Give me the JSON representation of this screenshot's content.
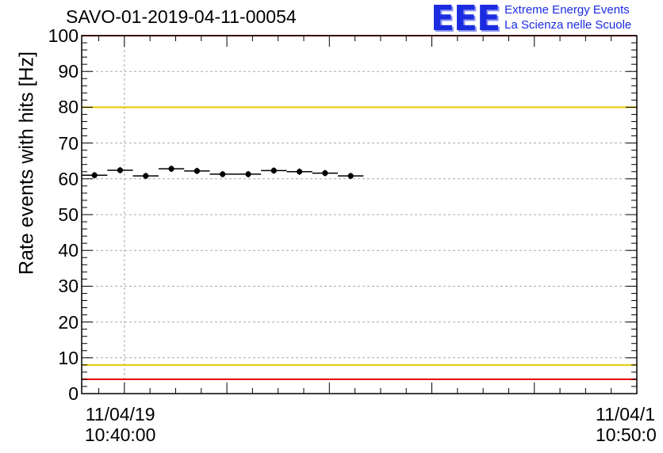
{
  "chart_data": {
    "type": "scatter",
    "title": "SAVO-01-2019-04-11-00054",
    "ylabel": "Rate events with hits [Hz]",
    "xlabel": "",
    "ylim": [
      0,
      100
    ],
    "xlim": [
      "2019-04-11T10:39:10",
      "2019-04-11T10:50:00"
    ],
    "yticks": [
      "0",
      "10",
      "20",
      "30",
      "40",
      "50",
      "60",
      "70",
      "80",
      "90",
      "100"
    ],
    "xticks": [
      {
        "date": "11/04/19",
        "time": "10:40:00"
      },
      {
        "date": "11/04/1",
        "time": "10:50:0"
      }
    ],
    "grid": true,
    "series": [
      {
        "points": [
          {
            "x": "2019-04-11T10:39:10",
            "x_end": "2019-04-11T10:39:40",
            "y": 61.0
          },
          {
            "x": "2019-04-11T10:39:40",
            "x_end": "2019-04-11T10:40:10",
            "y": 62.4
          },
          {
            "x": "2019-04-11T10:40:10",
            "x_end": "2019-04-11T10:40:40",
            "y": 60.8
          },
          {
            "x": "2019-04-11T10:40:40",
            "x_end": "2019-04-11T10:41:10",
            "y": 62.8
          },
          {
            "x": "2019-04-11T10:41:10",
            "x_end": "2019-04-11T10:41:40",
            "y": 62.2
          },
          {
            "x": "2019-04-11T10:41:40",
            "x_end": "2019-04-11T10:42:10",
            "y": 61.3
          },
          {
            "x": "2019-04-11T10:42:10",
            "x_end": "2019-04-11T10:42:40",
            "y": 61.3
          },
          {
            "x": "2019-04-11T10:42:40",
            "x_end": "2019-04-11T10:43:10",
            "y": 62.3
          },
          {
            "x": "2019-04-11T10:43:10",
            "x_end": "2019-04-11T10:43:40",
            "y": 62.0
          },
          {
            "x": "2019-04-11T10:43:40",
            "x_end": "2019-04-11T10:44:10",
            "y": 61.6
          },
          {
            "x": "2019-04-11T10:44:10",
            "x_end": "2019-04-11T10:44:40",
            "y": 60.8
          }
        ]
      }
    ],
    "reference_lines": [
      {
        "y": 100,
        "color": "#e60000"
      },
      {
        "y": 80,
        "color": "#e6c800"
      },
      {
        "y": 8,
        "color": "#e6c800"
      },
      {
        "y": 4,
        "color": "#e60000"
      }
    ],
    "point_color": "#000000"
  },
  "logo": {
    "mark": "EEE",
    "line1": "Extreme Energy Events",
    "line2": "La Scienza nelle Scuole",
    "color": "#1a2be0"
  }
}
